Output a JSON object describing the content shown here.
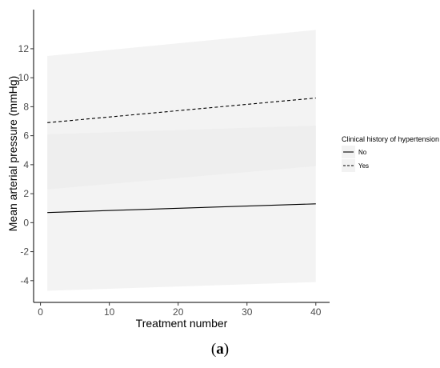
{
  "chart_data": {
    "type": "line",
    "xlabel": "Treatment number",
    "ylabel": "Mean arterial pressure (mmHg)",
    "xlim": [
      -1,
      42
    ],
    "ylim": [
      -5.5,
      14.7
    ],
    "x_ticks": [
      0,
      10,
      20,
      30,
      40
    ],
    "y_ticks": [
      -4,
      -2,
      0,
      2,
      4,
      6,
      8,
      10,
      12
    ],
    "x": [
      1,
      40
    ],
    "grid": false,
    "legend": {
      "title": "Clinical history of hypertension",
      "placement": "right"
    },
    "series": [
      {
        "name": "No",
        "linestyle": "solid",
        "values": [
          0.7,
          1.3
        ],
        "ci_lower": [
          -4.7,
          -4.1
        ],
        "ci_upper": [
          6.1,
          6.7
        ]
      },
      {
        "name": "Yes",
        "linestyle": "dashed",
        "values": [
          6.9,
          8.6
        ],
        "ci_lower": [
          2.3,
          3.9
        ],
        "ci_upper": [
          11.5,
          13.3
        ]
      }
    ],
    "colors": {
      "ribbon": "#ebebeb",
      "line": "#000000",
      "axis": "#000000"
    }
  },
  "caption": {
    "open": "(",
    "label": "a",
    "close": ")"
  }
}
